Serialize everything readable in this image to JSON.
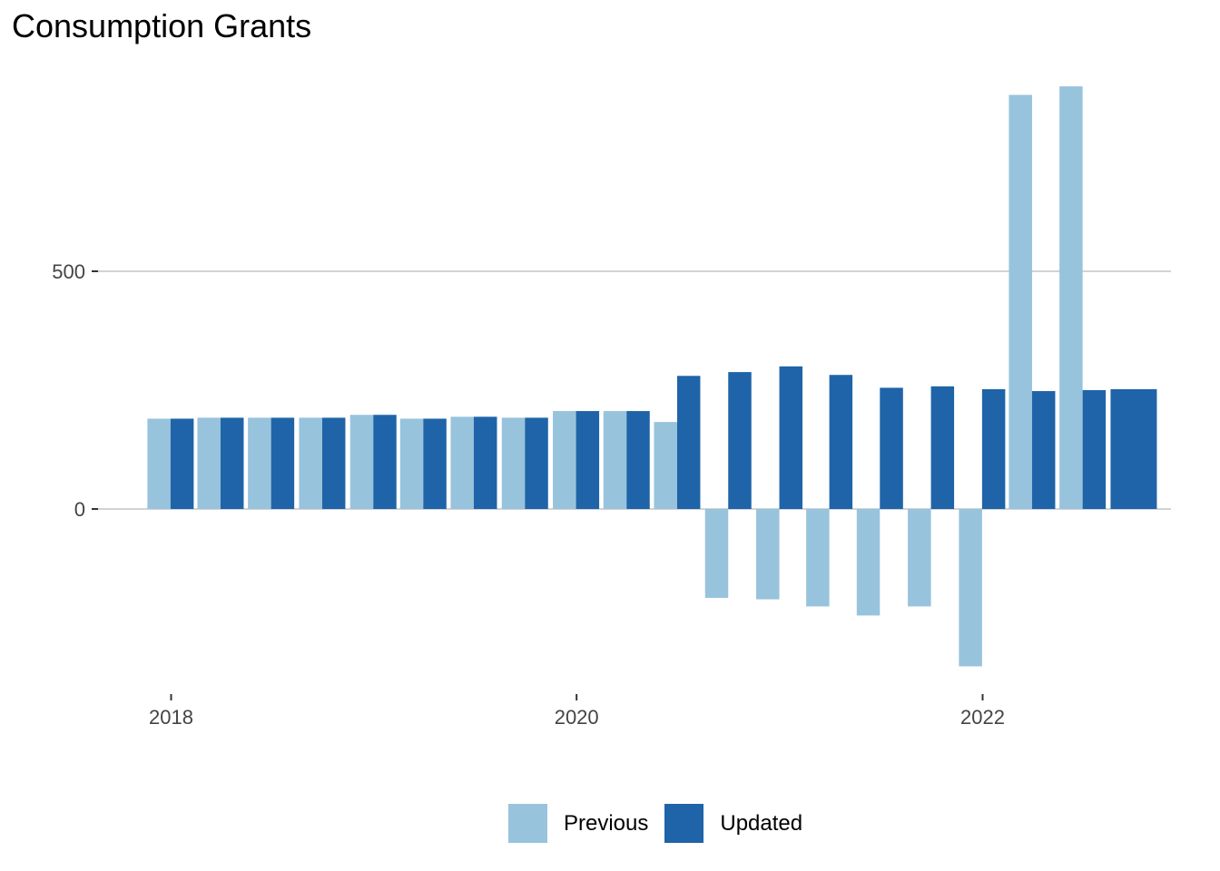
{
  "chart_data": {
    "type": "bar",
    "title": "Consumption Grants",
    "xlabel": "",
    "ylabel": "",
    "x_tick_labels": [
      "2018",
      "2020",
      "2022"
    ],
    "y_tick_labels": [
      "0",
      "500"
    ],
    "ylim": [
      -380,
      900
    ],
    "grid": "horizontal major only",
    "legend_position": "bottom",
    "colors": {
      "Previous": "#98c3dc",
      "Updated": "#1f64a8"
    },
    "categories": [
      "2017-12-31",
      "2018-03-31",
      "2018-06-30",
      "2018-09-30",
      "2018-12-31",
      "2019-03-31",
      "2019-06-30",
      "2019-09-30",
      "2019-12-31",
      "2020-03-31",
      "2020-06-30",
      "2020-09-30",
      "2020-12-31",
      "2021-03-31",
      "2021-06-30",
      "2021-09-30",
      "2021-12-31",
      "2022-03-31",
      "2022-06-30",
      "2022-09-30"
    ],
    "series": [
      {
        "name": "Previous",
        "values": [
          190,
          192,
          192,
          192,
          198,
          190,
          194,
          192,
          206,
          206,
          183,
          -187,
          -190,
          -205,
          -224,
          -205,
          -331,
          871,
          889,
          null
        ]
      },
      {
        "name": "Updated",
        "values": [
          190,
          192,
          192,
          192,
          198,
          190,
          194,
          192,
          206,
          206,
          280,
          288,
          300,
          282,
          255,
          258,
          252,
          248,
          250,
          252
        ]
      }
    ]
  }
}
